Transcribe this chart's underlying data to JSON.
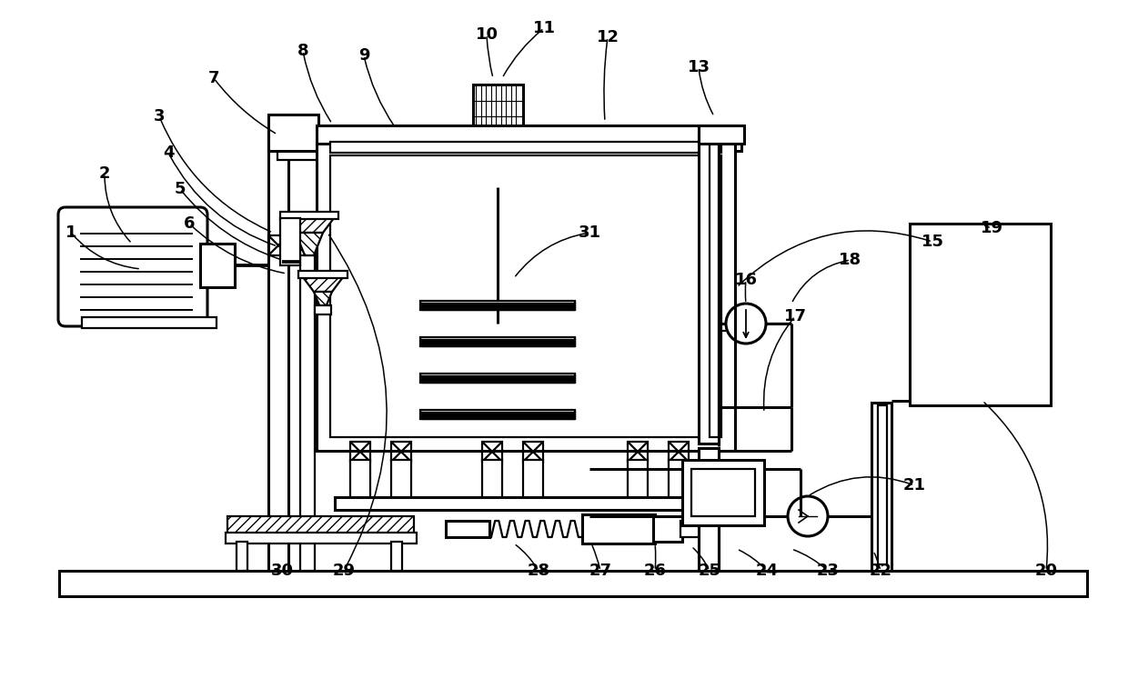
{
  "bg": "#ffffff",
  "figsize": [
    12.4,
    7.46
  ],
  "dpi": 100,
  "lw": 1.6,
  "lw2": 2.2,
  "fs": 13
}
